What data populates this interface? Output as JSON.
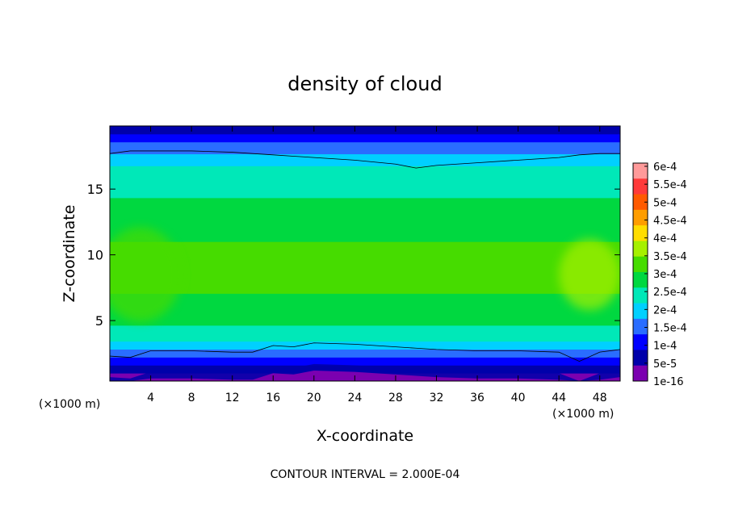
{
  "chart_data": {
    "type": "heatmap",
    "title": "density of cloud",
    "xlabel": "X-coordinate",
    "ylabel": "Z-coordinate",
    "x_unit_left": "(×1000 m)",
    "x_unit_right": "(×1000 m)",
    "footer": "CONTOUR INTERVAL = 2.000E-04",
    "xlim": [
      0,
      50
    ],
    "ylim": [
      0.4,
      19.8
    ],
    "x_ticks": [
      "4",
      "8",
      "12",
      "16",
      "20",
      "24",
      "28",
      "32",
      "36",
      "40",
      "44",
      "48"
    ],
    "x_tick_values": [
      4,
      8,
      12,
      16,
      20,
      24,
      28,
      32,
      36,
      40,
      44,
      48
    ],
    "y_ticks": [
      "5",
      "10",
      "15"
    ],
    "y_tick_values": [
      5,
      10,
      15
    ],
    "colorbar": {
      "labels": [
        "6e-4",
        "5.5e-4",
        "5e-4",
        "4.5e-4",
        "4e-4",
        "3.5e-4",
        "3e-4",
        "2.5e-4",
        "2e-4",
        "1.5e-4",
        "1e-4",
        "5e-5",
        "1e-16"
      ],
      "values": [
        0.0006,
        0.00055,
        0.0005,
        0.00045,
        0.0004,
        0.00035,
        0.0003,
        0.00025,
        0.0002,
        0.00015,
        0.0001,
        5e-05,
        1e-16
      ],
      "colors": [
        "#ff9a9a",
        "#ff3a3a",
        "#ff5a00",
        "#ff9d00",
        "#ffdd00",
        "#a6f000",
        "#46dc00",
        "#00d840",
        "#00e8b8",
        "#00d0ff",
        "#2a6dff",
        "#0000ff",
        "#0000aa",
        "#7b00b0"
      ]
    },
    "field": {
      "x": [
        0,
        2,
        4,
        8,
        12,
        14,
        16,
        18,
        20,
        24,
        28,
        30,
        32,
        36,
        40,
        44,
        46,
        48,
        50
      ],
      "z": [
        0.4,
        0.9,
        1.3,
        1.8,
        2.3,
        2.9,
        3.5,
        4.5,
        6,
        8,
        9.5,
        11,
        13,
        15,
        16.5,
        17.5,
        18.3,
        19,
        19.8
      ],
      "profile_z": [
        0.4,
        0.9,
        1.3,
        1.8,
        2.3,
        2.9,
        3.5,
        4.5,
        6,
        8,
        9.5,
        11,
        13,
        15,
        16.5,
        17.5,
        18.3,
        19,
        19.8
      ],
      "profile_density": [
        1e-16,
        3e-05,
        7e-05,
        0.00011,
        0.00016,
        0.0002,
        0.00025,
        0.0003,
        0.00034,
        0.00036,
        0.00037,
        0.00035,
        0.00032,
        0.00029,
        0.00026,
        0.00022,
        0.00017,
        0.00011,
        7e-05
      ],
      "contour_lower_z": [
        2.3,
        2.2,
        2.7,
        2.7,
        2.6,
        2.6,
        3.1,
        3.0,
        3.3,
        3.2,
        3.0,
        2.9,
        2.8,
        2.7,
        2.7,
        2.6,
        1.9,
        2.6,
        2.8
      ],
      "contour_upper_z": [
        17.7,
        17.9,
        17.9,
        17.9,
        17.8,
        17.7,
        17.6,
        17.5,
        17.4,
        17.2,
        16.9,
        16.6,
        16.8,
        17.0,
        17.2,
        17.4,
        17.6,
        17.7,
        17.7
      ],
      "high_blobs": [
        {
          "x": 3,
          "z": 8.5,
          "r": 4,
          "density": 0.00038
        },
        {
          "x": 47,
          "z": 8.5,
          "r": 3,
          "density": 0.0004
        }
      ]
    }
  }
}
